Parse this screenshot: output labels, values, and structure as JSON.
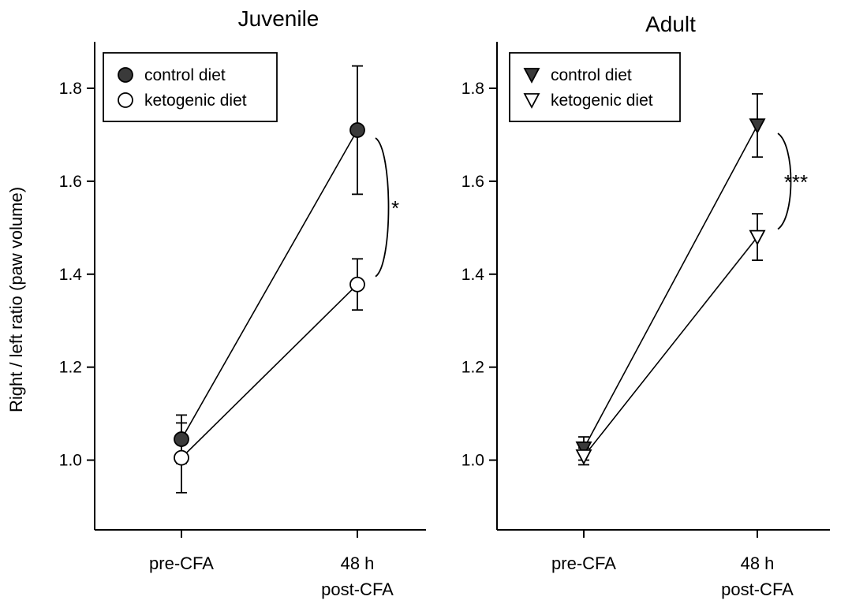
{
  "figure": {
    "ylabel": "Right / left ratio (paw volume)"
  },
  "chart_data": [
    {
      "type": "line",
      "title": "Juvenile",
      "xlabel": "",
      "ylabel": "Right / left ratio (paw volume)",
      "categories": [
        [
          "pre-CFA"
        ],
        [
          "48 h",
          "post-CFA"
        ]
      ],
      "ylim": [
        0.85,
        1.9
      ],
      "yticks": [
        1.0,
        1.2,
        1.4,
        1.6,
        1.8
      ],
      "ytick_labels": [
        "1.0",
        "1.2",
        "1.4",
        "1.6",
        "1.8"
      ],
      "marker": "circle",
      "legend_position": "top-left",
      "series": [
        {
          "name": "control diet",
          "fill": "#3a3a3a",
          "values": [
            1.045,
            1.71
          ],
          "errors": [
            0.052,
            0.138
          ]
        },
        {
          "name": "ketogenic diet",
          "fill": "#ffffff",
          "values": [
            1.005,
            1.378
          ],
          "errors": [
            0.075,
            0.055
          ]
        }
      ],
      "significance": "*"
    },
    {
      "type": "line",
      "title": "Adult",
      "xlabel": "",
      "ylabel": "",
      "categories": [
        [
          "pre-CFA"
        ],
        [
          "48 h",
          "post-CFA"
        ]
      ],
      "ylim": [
        0.85,
        1.9
      ],
      "yticks": [
        1.0,
        1.2,
        1.4,
        1.6,
        1.8
      ],
      "ytick_labels": [
        "1.0",
        "1.2",
        "1.4",
        "1.6",
        "1.8"
      ],
      "marker": "triangle-down",
      "legend_position": "top-left",
      "series": [
        {
          "name": "control diet",
          "fill": "#3a3a3a",
          "values": [
            1.025,
            1.72
          ],
          "errors": [
            0.025,
            0.068
          ]
        },
        {
          "name": "ketogenic diet",
          "fill": "#ffffff",
          "values": [
            1.008,
            1.48
          ],
          "errors": [
            0.018,
            0.05
          ]
        }
      ],
      "significance": "***"
    }
  ]
}
